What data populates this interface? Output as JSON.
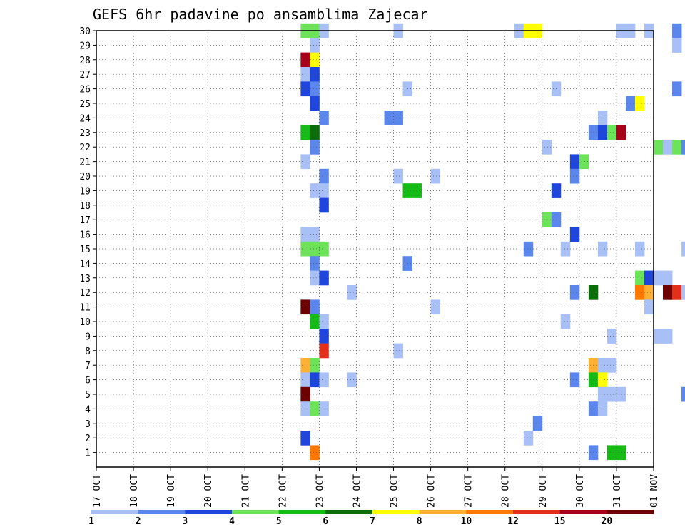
{
  "chart_data": {
    "type": "heatmap",
    "title": "GEFS 6hr padavine po ansamblima Zajecar",
    "xlabel": "",
    "ylabel": "",
    "x_tick_labels": [
      "17 OCT",
      "18 OCT",
      "19 OCT",
      "20 OCT",
      "21 OCT",
      "22 OCT",
      "23 OCT",
      "24 OCT",
      "25 OCT",
      "26 OCT",
      "27 OCT",
      "28 OCT",
      "29 OCT",
      "30 OCT",
      "31 OCT",
      "01 NOV"
    ],
    "x_range_days": [
      0,
      15
    ],
    "y_tick_labels": [
      "1",
      "2",
      "3",
      "4",
      "5",
      "6",
      "7",
      "8",
      "9",
      "10",
      "11",
      "12",
      "13",
      "14",
      "15",
      "16",
      "17",
      "18",
      "19",
      "20",
      "21",
      "22",
      "23",
      "24",
      "25",
      "26",
      "27",
      "28",
      "29",
      "30"
    ],
    "y_range": [
      0,
      30
    ],
    "grid": true,
    "legend": {
      "placement": "bottom",
      "labels": [
        "1",
        "2",
        "3",
        "4",
        "5",
        "6",
        "7",
        "8",
        "10",
        "12",
        "15",
        "20"
      ],
      "colors": [
        "#a8c0f5",
        "#5b86ec",
        "#1e46dc",
        "#6de35a",
        "#16bc16",
        "#0b6e0b",
        "#ffff00",
        "#ffaf32",
        "#ff7800",
        "#e4301a",
        "#a8001a",
        "#6e0000"
      ]
    },
    "cells": [
      [
        22,
        30,
        3
      ],
      [
        23,
        30,
        3
      ],
      [
        24,
        30,
        0
      ],
      [
        32,
        30,
        0
      ],
      [
        45,
        30,
        0
      ],
      [
        46,
        30,
        6
      ],
      [
        47,
        30,
        6
      ],
      [
        56,
        30,
        0
      ],
      [
        57,
        30,
        0
      ],
      [
        59,
        30,
        0
      ],
      [
        62,
        30,
        1
      ],
      [
        64,
        30,
        0
      ],
      [
        23,
        29,
        0
      ],
      [
        62,
        29,
        0
      ],
      [
        22,
        28,
        10
      ],
      [
        23,
        28,
        6
      ],
      [
        78,
        28,
        0
      ],
      [
        22,
        27,
        0
      ],
      [
        23,
        27,
        2
      ],
      [
        22,
        26,
        2
      ],
      [
        23,
        26,
        1
      ],
      [
        33,
        26,
        0
      ],
      [
        49,
        26,
        0
      ],
      [
        62,
        26,
        1
      ],
      [
        23,
        25,
        2
      ],
      [
        57,
        25,
        1
      ],
      [
        58,
        25,
        6
      ],
      [
        78,
        25,
        0
      ],
      [
        24,
        24,
        1
      ],
      [
        31,
        24,
        1
      ],
      [
        32,
        24,
        1
      ],
      [
        54,
        24,
        0
      ],
      [
        67,
        24,
        6
      ],
      [
        68,
        24,
        4
      ],
      [
        73,
        24,
        7
      ],
      [
        74,
        24,
        5
      ],
      [
        22,
        23,
        4
      ],
      [
        23,
        23,
        5
      ],
      [
        53,
        23,
        1
      ],
      [
        54,
        23,
        2
      ],
      [
        55,
        23,
        3
      ],
      [
        56,
        23,
        10
      ],
      [
        23,
        22,
        1
      ],
      [
        48,
        22,
        0
      ],
      [
        60,
        22,
        3
      ],
      [
        61,
        22,
        0
      ],
      [
        62,
        22,
        3
      ],
      [
        63,
        22,
        1
      ],
      [
        64,
        22,
        0
      ],
      [
        22,
        21,
        0
      ],
      [
        51,
        21,
        2
      ],
      [
        52,
        21,
        3
      ],
      [
        64,
        21,
        1
      ],
      [
        65,
        21,
        1
      ],
      [
        24,
        20,
        1
      ],
      [
        32,
        20,
        0
      ],
      [
        36,
        20,
        0
      ],
      [
        51,
        20,
        1
      ],
      [
        23,
        19,
        0
      ],
      [
        24,
        19,
        0
      ],
      [
        33,
        19,
        4
      ],
      [
        34,
        19,
        4
      ],
      [
        49,
        19,
        2
      ],
      [
        79,
        19,
        8
      ],
      [
        24,
        18,
        2
      ],
      [
        48,
        17,
        3
      ],
      [
        49,
        17,
        1
      ],
      [
        22,
        16,
        0
      ],
      [
        23,
        16,
        0
      ],
      [
        51,
        16,
        2
      ],
      [
        22,
        15,
        3
      ],
      [
        23,
        15,
        3
      ],
      [
        24,
        15,
        3
      ],
      [
        46,
        15,
        1
      ],
      [
        50,
        15,
        0
      ],
      [
        54,
        15,
        0
      ],
      [
        58,
        15,
        0
      ],
      [
        63,
        15,
        0
      ],
      [
        64,
        15,
        1
      ],
      [
        65,
        15,
        1
      ],
      [
        69,
        15,
        4
      ],
      [
        79,
        15,
        0
      ],
      [
        23,
        14,
        1
      ],
      [
        33,
        14,
        1
      ],
      [
        23,
        13,
        0
      ],
      [
        24,
        13,
        2
      ],
      [
        58,
        13,
        3
      ],
      [
        59,
        13,
        2
      ],
      [
        60,
        13,
        0
      ],
      [
        61,
        13,
        0
      ],
      [
        27,
        12,
        0
      ],
      [
        51,
        12,
        1
      ],
      [
        53,
        12,
        5
      ],
      [
        58,
        12,
        8
      ],
      [
        59,
        12,
        7
      ],
      [
        61,
        12,
        11
      ],
      [
        62,
        12,
        9
      ],
      [
        63,
        12,
        0
      ],
      [
        22,
        11,
        11
      ],
      [
        23,
        11,
        1
      ],
      [
        36,
        11,
        0
      ],
      [
        59,
        11,
        0
      ],
      [
        23,
        10,
        4
      ],
      [
        24,
        10,
        0
      ],
      [
        50,
        10,
        0
      ],
      [
        66,
        10,
        0
      ],
      [
        67,
        10,
        3
      ],
      [
        24,
        9,
        2
      ],
      [
        55,
        9,
        0
      ],
      [
        60,
        9,
        0
      ],
      [
        61,
        9,
        0
      ],
      [
        24,
        8,
        9
      ],
      [
        32,
        8,
        0
      ],
      [
        22,
        7,
        7
      ],
      [
        23,
        7,
        3
      ],
      [
        53,
        7,
        7
      ],
      [
        54,
        7,
        0
      ],
      [
        55,
        7,
        0
      ],
      [
        78,
        7,
        0
      ],
      [
        79,
        7,
        1
      ],
      [
        22,
        6,
        0
      ],
      [
        23,
        6,
        2
      ],
      [
        24,
        6,
        0
      ],
      [
        27,
        6,
        0
      ],
      [
        51,
        6,
        1
      ],
      [
        53,
        6,
        4
      ],
      [
        54,
        6,
        6
      ],
      [
        22,
        5,
        11
      ],
      [
        54,
        5,
        0
      ],
      [
        55,
        5,
        0
      ],
      [
        56,
        5,
        0
      ],
      [
        63,
        5,
        1
      ],
      [
        64,
        5,
        4
      ],
      [
        65,
        5,
        1
      ],
      [
        71,
        5,
        2
      ],
      [
        22,
        4,
        0
      ],
      [
        23,
        4,
        3
      ],
      [
        24,
        4,
        0
      ],
      [
        53,
        4,
        1
      ],
      [
        54,
        4,
        0
      ],
      [
        47,
        3,
        1
      ],
      [
        22,
        2,
        2
      ],
      [
        46,
        2,
        0
      ],
      [
        75,
        2,
        0
      ],
      [
        78,
        2,
        2
      ],
      [
        79,
        2,
        2
      ],
      [
        23,
        1,
        8
      ],
      [
        53,
        1,
        1
      ],
      [
        55,
        1,
        4
      ],
      [
        56,
        1,
        4
      ]
    ]
  }
}
